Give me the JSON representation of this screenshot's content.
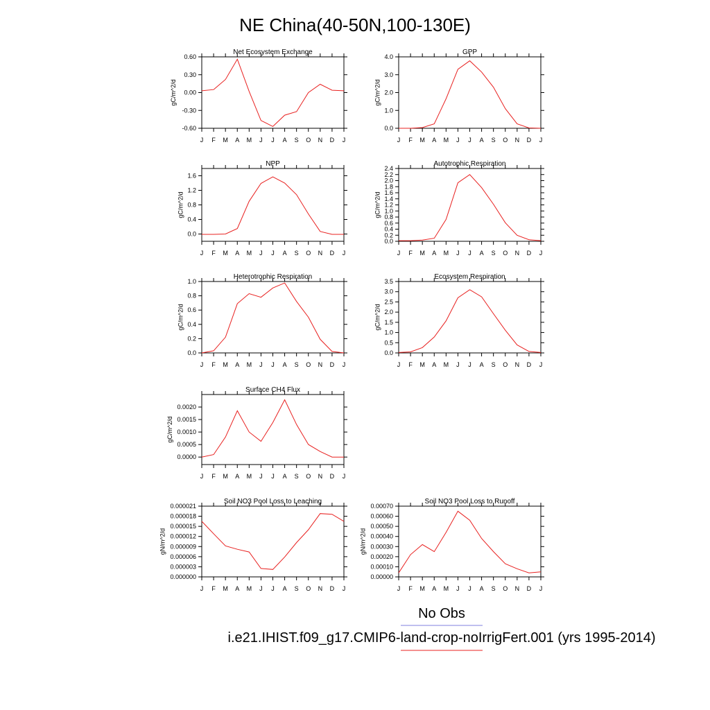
{
  "figure": {
    "title": "NE China(40-50N,100-130E)",
    "colors": {
      "model": "#e8201f",
      "obs": "#7f7fdf"
    }
  },
  "legend": {
    "obs_label": "No Obs",
    "model_label": "i.e21.IHIST.f09_g17.CMIP6-land-crop-noIrrigFert.001 (yrs 1995-2014)"
  },
  "chart_data": [
    {
      "type": "line",
      "title": "Net Ecosystem Exchange",
      "xlabel": "",
      "ylabel": "gC/m^2/d",
      "x": [
        "J",
        "F",
        "M",
        "A",
        "M",
        "J",
        "J",
        "A",
        "S",
        "O",
        "N",
        "D",
        "J"
      ],
      "ylim": [
        -0.6,
        0.6
      ],
      "yticks": [
        "0.60",
        "0.30",
        "0.00",
        "-0.30",
        "-0.60"
      ],
      "ytick_values": [
        0.6,
        0.3,
        0.0,
        -0.3,
        -0.6
      ],
      "series": [
        {
          "values": [
            0.03,
            0.05,
            0.22,
            0.56,
            0.02,
            -0.47,
            -0.57,
            -0.38,
            -0.32,
            0.0,
            0.14,
            0.04,
            0.03
          ]
        }
      ]
    },
    {
      "type": "line",
      "title": "GPP",
      "xlabel": "",
      "ylabel": "gC/m^2/d",
      "x": [
        "J",
        "F",
        "M",
        "A",
        "M",
        "J",
        "J",
        "A",
        "S",
        "O",
        "N",
        "D",
        "J"
      ],
      "ylim": [
        0,
        4
      ],
      "yticks": [
        "4.0",
        "3.0",
        "2.0",
        "1.0",
        "0.0"
      ],
      "ytick_values": [
        4,
        3,
        2,
        1,
        0
      ],
      "series": [
        {
          "values": [
            0.0,
            0.0,
            0.04,
            0.25,
            1.65,
            3.3,
            3.78,
            3.15,
            2.3,
            1.1,
            0.25,
            0.02,
            0.0
          ]
        }
      ]
    },
    {
      "type": "line",
      "title": "NPP",
      "xlabel": "",
      "ylabel": "gC/m^2/d",
      "x": [
        "J",
        "F",
        "M",
        "A",
        "M",
        "J",
        "J",
        "A",
        "S",
        "O",
        "N",
        "D",
        "J"
      ],
      "ylim": [
        -0.2,
        1.8
      ],
      "yticks": [
        "1.6",
        "1.2",
        "0.8",
        "0.4",
        "0.0"
      ],
      "ytick_values": [
        1.6,
        1.2,
        0.8,
        0.4,
        0.0
      ],
      "series": [
        {
          "values": [
            -0.01,
            -0.01,
            0.0,
            0.15,
            0.9,
            1.39,
            1.57,
            1.4,
            1.08,
            0.55,
            0.07,
            -0.01,
            -0.01
          ]
        }
      ]
    },
    {
      "type": "line",
      "title": "Autotrophic Respiration",
      "xlabel": "",
      "ylabel": "gC/m^2/d",
      "x": [
        "J",
        "F",
        "M",
        "A",
        "M",
        "J",
        "J",
        "A",
        "S",
        "O",
        "N",
        "D",
        "J"
      ],
      "ylim": [
        0,
        2.4
      ],
      "yticks": [
        "2.4",
        "2.2",
        "2.0",
        "1.8",
        "1.6",
        "1.4",
        "1.2",
        "1.0",
        "0.8",
        "0.6",
        "0.4",
        "0.2",
        "0.0"
      ],
      "ytick_values": [
        2.4,
        2.2,
        2.0,
        1.8,
        1.6,
        1.4,
        1.2,
        1.0,
        0.8,
        0.6,
        0.4,
        0.2,
        0.0
      ],
      "series": [
        {
          "values": [
            0.02,
            0.02,
            0.04,
            0.1,
            0.72,
            1.93,
            2.2,
            1.77,
            1.22,
            0.61,
            0.2,
            0.05,
            0.02
          ]
        }
      ]
    },
    {
      "type": "line",
      "title": "Heterotrophic Respiration",
      "xlabel": "",
      "ylabel": "gC/m^2/d",
      "x": [
        "J",
        "F",
        "M",
        "A",
        "M",
        "J",
        "J",
        "A",
        "S",
        "O",
        "N",
        "D",
        "J"
      ],
      "ylim": [
        0,
        1.0
      ],
      "yticks": [
        "1.0",
        "0.8",
        "0.6",
        "0.4",
        "0.2",
        "0.0"
      ],
      "ytick_values": [
        1.0,
        0.8,
        0.6,
        0.4,
        0.2,
        0.0
      ],
      "series": [
        {
          "values": [
            0.0,
            0.03,
            0.22,
            0.69,
            0.83,
            0.78,
            0.91,
            0.98,
            0.72,
            0.5,
            0.19,
            0.02,
            0.0
          ]
        }
      ]
    },
    {
      "type": "line",
      "title": "Ecosystem Respiration",
      "xlabel": "",
      "ylabel": "gC/m^2/d",
      "x": [
        "J",
        "F",
        "M",
        "A",
        "M",
        "J",
        "J",
        "A",
        "S",
        "O",
        "N",
        "D",
        "J"
      ],
      "ylim": [
        0,
        3.5
      ],
      "yticks": [
        "3.5",
        "3.0",
        "2.5",
        "2.0",
        "1.5",
        "1.0",
        "0.5",
        "0.0"
      ],
      "ytick_values": [
        3.5,
        3.0,
        2.5,
        2.0,
        1.5,
        1.0,
        0.5,
        0.0
      ],
      "series": [
        {
          "values": [
            0.02,
            0.05,
            0.26,
            0.78,
            1.57,
            2.7,
            3.1,
            2.75,
            1.92,
            1.11,
            0.39,
            0.07,
            0.02
          ]
        }
      ]
    },
    {
      "type": "line",
      "title": "Surface CH4 Flux",
      "xlabel": "",
      "ylabel": "gC/m^2/d",
      "x": [
        "J",
        "F",
        "M",
        "A",
        "M",
        "J",
        "J",
        "A",
        "S",
        "O",
        "N",
        "D",
        "J"
      ],
      "ylim": [
        -0.0003,
        0.0025
      ],
      "yticks": [
        "0.0020",
        "0.0015",
        "0.0010",
        "0.0005",
        "0.0000"
      ],
      "ytick_values": [
        0.002,
        0.0015,
        0.001,
        0.0005,
        0.0
      ],
      "series": [
        {
          "values": [
            0.0,
            0.0001,
            0.0008,
            0.00185,
            0.001,
            0.00063,
            0.00138,
            0.00229,
            0.0013,
            0.0005,
            0.00022,
            0.0,
            0.0
          ]
        }
      ]
    },
    {
      "type": "line",
      "title": "Soil NO3 Pool Loss to Leaching",
      "xlabel": "",
      "ylabel": "gN/m^2/d",
      "x": [
        "J",
        "F",
        "M",
        "A",
        "M",
        "J",
        "J",
        "A",
        "S",
        "O",
        "N",
        "D",
        "J"
      ],
      "ylim": [
        0,
        2.1e-05
      ],
      "yticks": [
        "0.000021",
        "0.000018",
        "0.000015",
        "0.000012",
        "0.000009",
        "0.000006",
        "0.000003",
        "0.000000"
      ],
      "ytick_values": [
        2.1e-05,
        1.8e-05,
        1.5e-05,
        1.2e-05,
        9e-06,
        6e-06,
        3e-06,
        0.0
      ],
      "series": [
        {
          "values": [
            1.65e-05,
            1.28e-05,
            9.2e-06,
            8.2e-06,
            7.4e-06,
            2.5e-06,
            2.2e-06,
            5.9e-06,
            1.02e-05,
            1.4e-05,
            1.88e-05,
            1.86e-05,
            1.65e-05
          ]
        }
      ]
    },
    {
      "type": "line",
      "title": "Soil NO3 Pool Loss to Runoff",
      "xlabel": "",
      "ylabel": "gN/m^2/d",
      "x": [
        "J",
        "F",
        "M",
        "A",
        "M",
        "J",
        "J",
        "A",
        "S",
        "O",
        "N",
        "D",
        "J"
      ],
      "ylim": [
        0,
        0.0007
      ],
      "yticks": [
        "0.00070",
        "0.00060",
        "0.00050",
        "0.00040",
        "0.00030",
        "0.00020",
        "0.00010",
        "0.00000"
      ],
      "ytick_values": [
        0.0007,
        0.0006,
        0.0005,
        0.0004,
        0.0003,
        0.0002,
        0.0001,
        0.0
      ],
      "series": [
        {
          "values": [
            4e-05,
            0.00022,
            0.00032,
            0.00025,
            0.00044,
            0.00065,
            0.00056,
            0.00038,
            0.00025,
            0.00013,
            8e-05,
            4e-05,
            5e-05
          ]
        }
      ]
    }
  ]
}
